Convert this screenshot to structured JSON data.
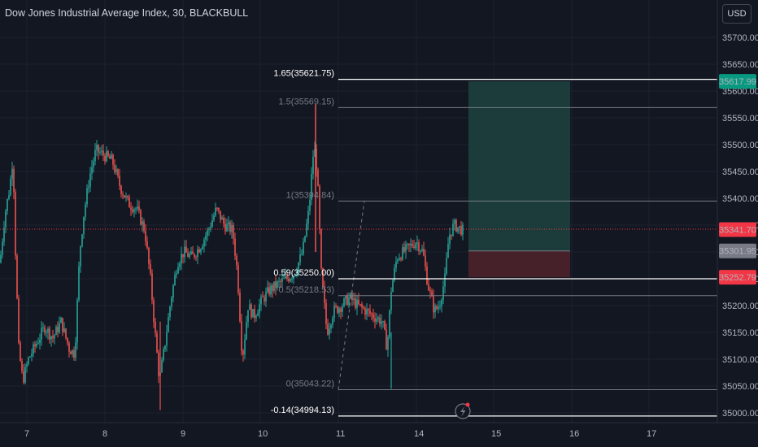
{
  "header": {
    "title": "Dow Jones Industrial Average Index, 30, BLACKBULL",
    "currency_button": "USD"
  },
  "price_axis": {
    "ticks": [
      "35700.00",
      "35650.00",
      "35600.00",
      "35550.00",
      "35500.00",
      "35450.00",
      "35400.00",
      "35350.00",
      "35300.00",
      "35250.00",
      "35200.00",
      "35150.00",
      "35100.00",
      "35050.00",
      "35000.00"
    ]
  },
  "time_axis": {
    "ticks": [
      "7",
      "8",
      "9",
      "10",
      "11",
      "14",
      "15",
      "16",
      "17"
    ]
  },
  "fib_levels": [
    {
      "label": "1.65(35621.75)",
      "value": 35621.75,
      "style": "bold"
    },
    {
      "label": "1.5(35569.15)",
      "value": 35569.15,
      "style": "dim"
    },
    {
      "label": "1(35394.84)",
      "value": 35394.84,
      "style": "dim"
    },
    {
      "label": "0.59(35250.00)",
      "value": 35250.0,
      "style": "bold"
    },
    {
      "label": "0.5(35218.53)",
      "value": 35218.53,
      "style": "dim"
    },
    {
      "label": "0(35043.22)",
      "value": 35043.22,
      "style": "dim"
    },
    {
      "label": "-0.14(34994.13)",
      "value": 34994.13,
      "style": "bold"
    }
  ],
  "price_tags": {
    "take_profit": {
      "value": "35617.99",
      "color": "#089981"
    },
    "current": {
      "value": "35341.70",
      "color": "#f23645"
    },
    "entry": {
      "value": "35301.95",
      "color": "#787b86"
    },
    "stop": {
      "value": "35252.79",
      "color": "#f23645"
    }
  },
  "colors": {
    "up": "#26a69a",
    "down": "#ef5350",
    "profit_zone": "#1b3c3b",
    "loss_zone": "#46212a"
  },
  "icons": [
    "lightning-alert-icon"
  ]
}
